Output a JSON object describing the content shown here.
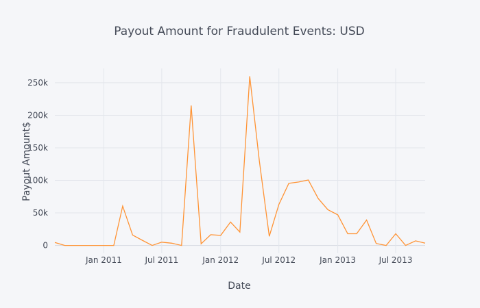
{
  "chart_data": {
    "type": "line",
    "title": "Payout Amount for Fraudulent Events: USD",
    "xlabel": "Date",
    "ylabel": "Payout Amount$",
    "x_ticks": [
      {
        "date": "2011-01-01",
        "label": "Jan 2011"
      },
      {
        "date": "2011-07-01",
        "label": "Jul 2011"
      },
      {
        "date": "2012-01-01",
        "label": "Jan 2012"
      },
      {
        "date": "2012-07-01",
        "label": "Jul 2012"
      },
      {
        "date": "2013-01-01",
        "label": "Jan 2013"
      },
      {
        "date": "2013-07-01",
        "label": "Jul 2013"
      }
    ],
    "y_ticks": [
      {
        "value": 0,
        "label": "0"
      },
      {
        "value": 50000,
        "label": "50k"
      },
      {
        "value": 100000,
        "label": "100k"
      },
      {
        "value": 150000,
        "label": "150k"
      },
      {
        "value": 200000,
        "label": "200k"
      },
      {
        "value": 250000,
        "label": "250k"
      }
    ],
    "xlim": [
      "2010-08-01",
      "2013-10-01"
    ],
    "ylim": [
      -12000,
      272000
    ],
    "grid": true,
    "series": [
      {
        "color": "#ff9334",
        "x": [
          "2010-08-01",
          "2010-09-01",
          "2010-10-01",
          "2010-11-01",
          "2010-12-01",
          "2011-01-01",
          "2011-02-01",
          "2011-03-01",
          "2011-04-01",
          "2011-05-01",
          "2011-06-01",
          "2011-07-01",
          "2011-08-01",
          "2011-09-01",
          "2011-10-01",
          "2011-11-01",
          "2011-12-01",
          "2012-01-01",
          "2012-02-01",
          "2012-03-01",
          "2012-04-01",
          "2012-05-01",
          "2012-06-01",
          "2012-07-01",
          "2012-08-01",
          "2012-09-01",
          "2012-10-01",
          "2012-11-01",
          "2012-12-01",
          "2013-01-01",
          "2013-02-01",
          "2013-03-01",
          "2013-04-01",
          "2013-05-01",
          "2013-06-01",
          "2013-07-01",
          "2013-08-01",
          "2013-09-01",
          "2013-10-01"
        ],
        "values": [
          4500,
          0,
          0,
          0,
          0,
          0,
          0,
          60500,
          16000,
          8000,
          0,
          5000,
          3500,
          0,
          215000,
          2500,
          16500,
          15500,
          36000,
          20500,
          260000,
          130000,
          14000,
          63000,
          95500,
          97500,
          100500,
          72000,
          55000,
          47000,
          18000,
          18000,
          39000,
          3000,
          0,
          18000,
          0,
          7000,
          3500
        ]
      }
    ]
  }
}
